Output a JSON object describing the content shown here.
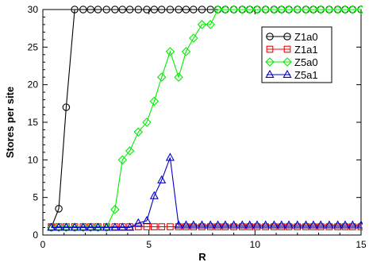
{
  "chart_data": {
    "type": "line",
    "title": "",
    "xlabel": "R",
    "ylabel": "Stores per site",
    "xlim": [
      0,
      15
    ],
    "ylim": [
      0,
      30
    ],
    "xticks": [
      0,
      5,
      10,
      15
    ],
    "yticks": [
      0,
      5,
      10,
      15,
      20,
      25,
      30
    ],
    "xtick_labels": [
      "0",
      "5",
      "10",
      "15"
    ],
    "ytick_labels": [
      "0",
      "5",
      "10",
      "15",
      "20",
      "25",
      "30"
    ],
    "grid": false,
    "legend_position": "top-right",
    "series": [
      {
        "name": "Z1a0",
        "color": "#000000",
        "marker": "circle",
        "x": [
          0.4,
          0.75,
          1.1,
          1.5,
          1.9,
          2.25,
          2.6,
          3.0,
          3.4,
          3.75,
          4.1,
          4.5,
          4.9,
          5.25,
          5.6,
          6.0,
          6.4,
          6.75,
          7.1,
          7.5,
          7.9,
          8.25,
          8.6,
          9.0,
          9.4,
          9.75,
          10.1,
          10.5,
          10.9,
          11.25,
          11.6,
          12.0,
          12.4,
          12.75,
          13.1,
          13.5,
          13.9,
          14.25,
          14.6,
          15.0
        ],
        "y": [
          1.0,
          3.5,
          17.0,
          30,
          30,
          30,
          30,
          30,
          30,
          30,
          30,
          30,
          30,
          30,
          30,
          30,
          30,
          30,
          30,
          30,
          30,
          30,
          30,
          30,
          30,
          30,
          30,
          30,
          30,
          30,
          30,
          30,
          30,
          30,
          30,
          30,
          30,
          30,
          30,
          30
        ]
      },
      {
        "name": "Z1a1",
        "color": "#ff0000",
        "marker": "square",
        "x": [
          0.4,
          0.75,
          1.1,
          1.5,
          1.9,
          2.25,
          2.6,
          3.0,
          3.4,
          3.75,
          4.1,
          4.5,
          4.9,
          5.25,
          5.6,
          6.0,
          6.4,
          6.75,
          7.1,
          7.5,
          7.9,
          8.25,
          8.6,
          9.0,
          9.4,
          9.75,
          10.1,
          10.5,
          10.9,
          11.25,
          11.6,
          12.0,
          12.4,
          12.75,
          13.1,
          13.5,
          13.9,
          14.25,
          14.6,
          15.0
        ],
        "y": [
          1.1,
          1.1,
          1.1,
          1.1,
          1.1,
          1.1,
          1.1,
          1.1,
          1.1,
          1.1,
          1.1,
          1.1,
          1.1,
          1.1,
          1.1,
          1.1,
          1.1,
          1.1,
          1.1,
          1.1,
          1.1,
          1.1,
          1.1,
          1.1,
          1.1,
          1.1,
          1.1,
          1.1,
          1.1,
          1.1,
          1.1,
          1.1,
          1.1,
          1.1,
          1.1,
          1.1,
          1.1,
          1.1,
          1.1,
          1.1
        ]
      },
      {
        "name": "Z5a0",
        "color": "#00ee00",
        "marker": "diamond",
        "x": [
          0.4,
          0.75,
          1.1,
          1.5,
          1.9,
          2.25,
          2.6,
          3.0,
          3.4,
          3.75,
          4.1,
          4.5,
          4.9,
          5.25,
          5.6,
          6.0,
          6.4,
          6.75,
          7.1,
          7.5,
          7.9,
          8.25,
          8.6,
          9.0,
          9.4,
          9.75,
          10.1,
          10.5,
          10.9,
          11.25,
          11.6,
          12.0,
          12.4,
          12.75,
          13.1,
          13.5,
          13.9,
          14.25,
          14.6,
          15.0
        ],
        "y": [
          1.0,
          1.0,
          1.0,
          1.0,
          1.0,
          1.0,
          1.0,
          1.0,
          3.4,
          10.0,
          11.2,
          13.7,
          15.0,
          17.8,
          21.0,
          24.4,
          21.0,
          24.4,
          26.2,
          28.0,
          28.0,
          30,
          30,
          30,
          30,
          30,
          30,
          30,
          30,
          30,
          30,
          30,
          30,
          30,
          30,
          30,
          30,
          30,
          30,
          30
        ]
      },
      {
        "name": "Z5a1",
        "color": "#0000cc",
        "marker": "triangle",
        "x": [
          0.4,
          0.75,
          1.1,
          1.5,
          1.9,
          2.25,
          2.6,
          3.0,
          3.4,
          3.75,
          4.1,
          4.5,
          4.9,
          5.25,
          5.6,
          6.0,
          6.4,
          6.75,
          7.1,
          7.5,
          7.9,
          8.25,
          8.6,
          9.0,
          9.4,
          9.75,
          10.1,
          10.5,
          10.9,
          11.25,
          11.6,
          12.0,
          12.4,
          12.75,
          13.1,
          13.5,
          13.9,
          14.25,
          14.6,
          15.0
        ],
        "y": [
          1.0,
          1.0,
          1.0,
          1.0,
          1.0,
          1.0,
          1.0,
          1.0,
          1.0,
          1.0,
          1.0,
          1.6,
          1.9,
          5.2,
          7.3,
          10.3,
          1.3,
          1.3,
          1.3,
          1.3,
          1.3,
          1.3,
          1.3,
          1.3,
          1.3,
          1.3,
          1.3,
          1.3,
          1.3,
          1.3,
          1.3,
          1.3,
          1.3,
          1.3,
          1.3,
          1.3,
          1.3,
          1.3,
          1.3,
          1.3
        ]
      }
    ]
  }
}
